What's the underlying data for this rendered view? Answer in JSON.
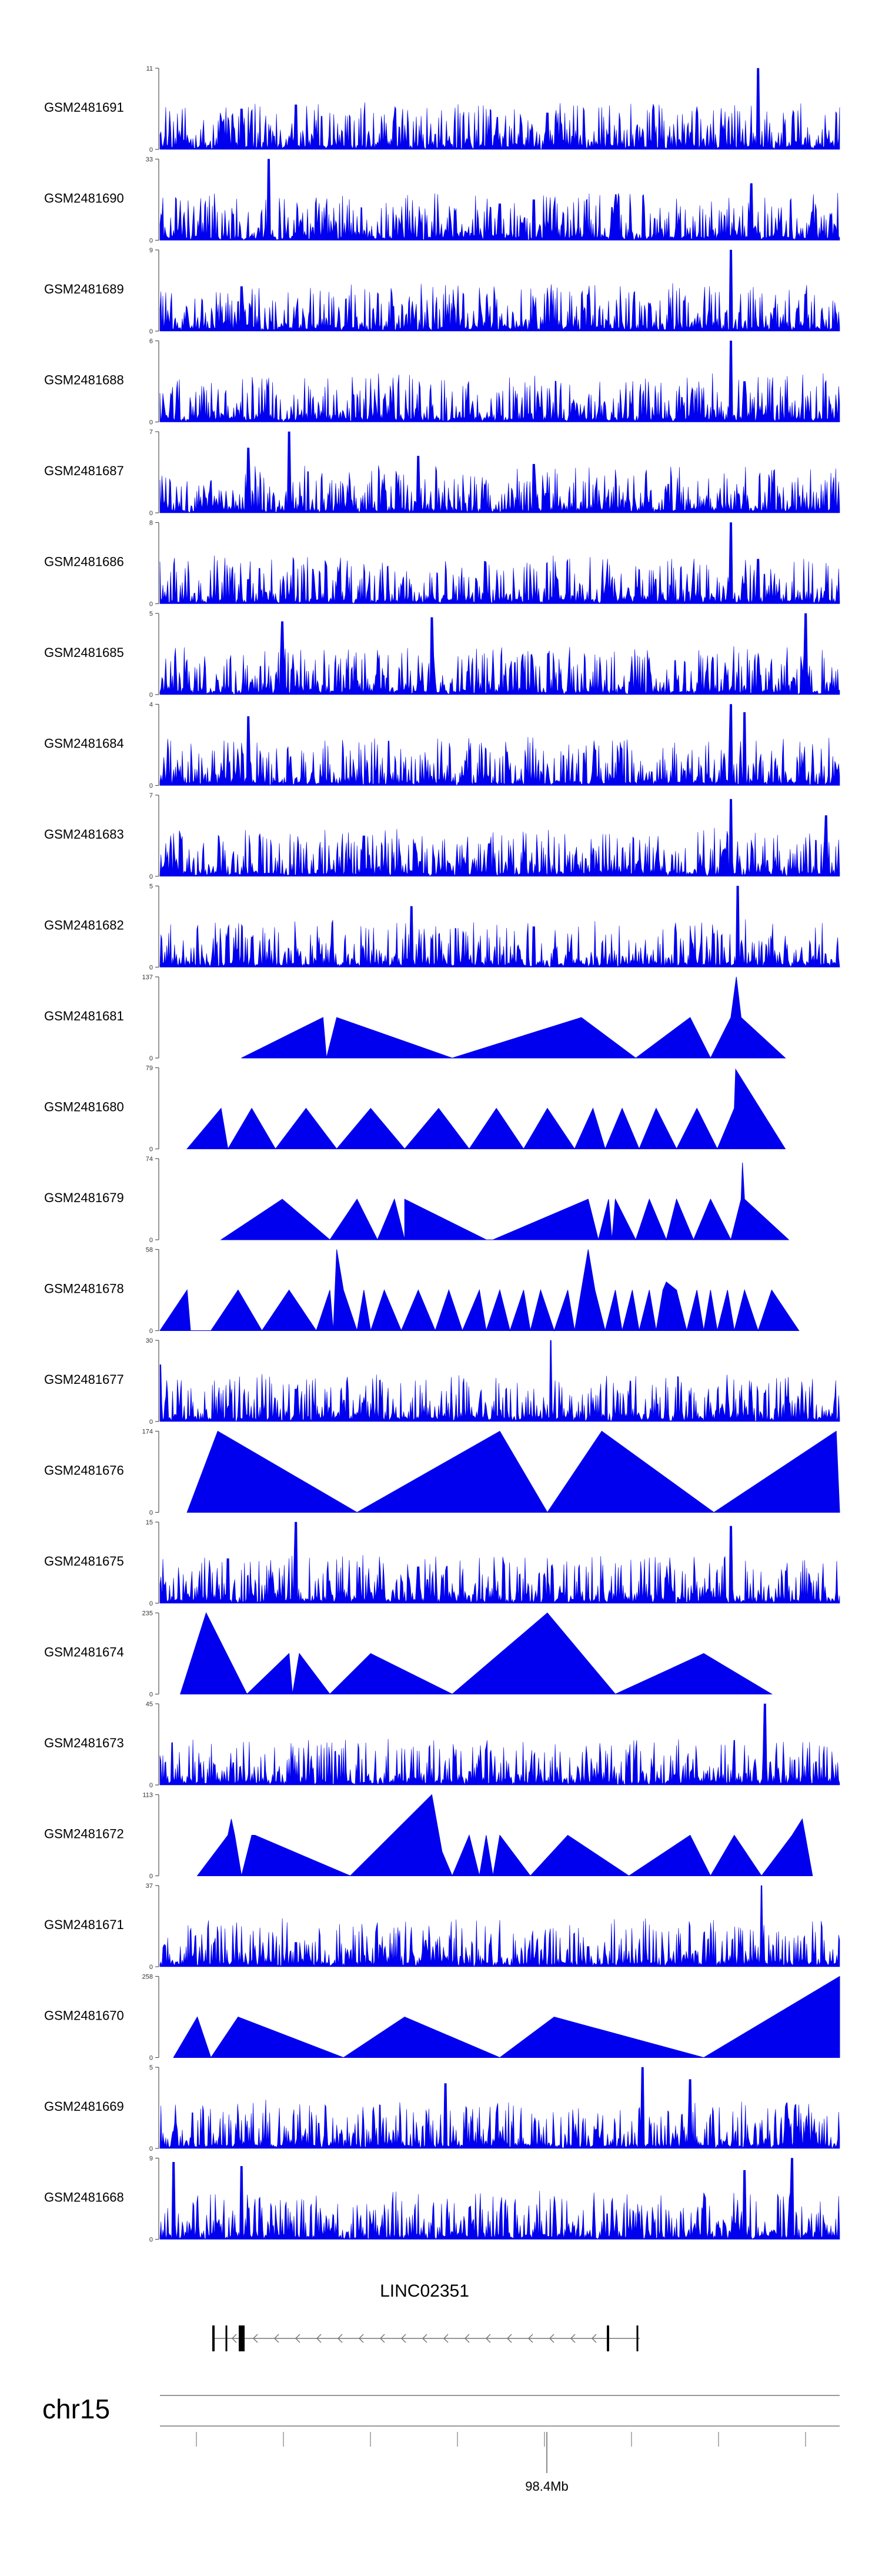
{
  "chart_data": {
    "type": "area",
    "title": "",
    "region_chromosome": "chr15",
    "gene_label": "LINC02351",
    "genome_axis": {
      "tick_label": "98.4Mb"
    },
    "track_color": "#0000ee",
    "tracks": [
      {
        "name": "GSM2481691",
        "ymax": 11,
        "kind": "dense",
        "peaks": [
          [
            0.88,
            1.0
          ],
          [
            0.12,
            0.5
          ],
          [
            0.2,
            0.55
          ],
          [
            0.57,
            0.45
          ],
          [
            0.79,
            0.45
          ]
        ]
      },
      {
        "name": "GSM2481690",
        "ymax": 33,
        "kind": "dense",
        "peaks": [
          [
            0.16,
            1.0
          ],
          [
            0.87,
            0.7
          ],
          [
            0.55,
            0.5
          ],
          [
            0.5,
            0.45
          ]
        ]
      },
      {
        "name": "GSM2481689",
        "ymax": 9,
        "kind": "dense",
        "peaks": [
          [
            0.84,
            1.0
          ],
          [
            0.12,
            0.55
          ],
          [
            0.63,
            0.45
          ]
        ]
      },
      {
        "name": "GSM2481688",
        "ymax": 6,
        "kind": "dense",
        "peaks": [
          [
            0.84,
            1.0
          ],
          [
            0.86,
            0.5
          ]
        ]
      },
      {
        "name": "GSM2481687",
        "ymax": 7,
        "kind": "dense",
        "peaks": [
          [
            0.19,
            1.0
          ],
          [
            0.13,
            0.8
          ],
          [
            0.38,
            0.7
          ],
          [
            0.55,
            0.6
          ]
        ]
      },
      {
        "name": "GSM2481686",
        "ymax": 8,
        "kind": "dense",
        "peaks": [
          [
            0.84,
            1.0
          ],
          [
            0.88,
            0.55
          ],
          [
            0.13,
            0.3
          ]
        ]
      },
      {
        "name": "GSM2481685",
        "ymax": 5,
        "kind": "dense",
        "peaks": [
          [
            0.95,
            1.0
          ],
          [
            0.4,
            0.95
          ],
          [
            0.18,
            0.9
          ]
        ]
      },
      {
        "name": "GSM2481684",
        "ymax": 4,
        "kind": "dense",
        "peaks": [
          [
            0.84,
            1.0
          ],
          [
            0.86,
            0.9
          ],
          [
            0.13,
            0.85
          ]
        ]
      },
      {
        "name": "GSM2481683",
        "ymax": 7,
        "kind": "dense",
        "peaks": [
          [
            0.84,
            0.95
          ],
          [
            0.98,
            0.75
          ],
          [
            0.3,
            0.5
          ]
        ]
      },
      {
        "name": "GSM2481682",
        "ymax": 5,
        "kind": "dense",
        "peaks": [
          [
            0.85,
            1.0
          ],
          [
            0.37,
            0.75
          ],
          [
            0.55,
            0.5
          ]
        ]
      },
      {
        "name": "GSM2481681",
        "ymax": 137,
        "kind": "sparse",
        "points": [
          [
            0.12,
            0
          ],
          [
            0.24,
            0.5
          ],
          [
            0.245,
            0
          ],
          [
            0.26,
            0.5
          ],
          [
            0.43,
            0
          ],
          [
            0.62,
            0.5
          ],
          [
            0.7,
            0
          ],
          [
            0.78,
            0.5
          ],
          [
            0.81,
            0
          ],
          [
            0.84,
            0.5
          ],
          [
            0.848,
            1.0
          ],
          [
            0.855,
            0.5
          ],
          [
            0.92,
            0
          ]
        ]
      },
      {
        "name": "GSM2481680",
        "ymax": 79,
        "kind": "sparse",
        "points": [
          [
            0.04,
            0
          ],
          [
            0.09,
            0.5
          ],
          [
            0.1,
            0
          ],
          [
            0.135,
            0.5
          ],
          [
            0.17,
            0
          ],
          [
            0.215,
            0.5
          ],
          [
            0.26,
            0
          ],
          [
            0.31,
            0.5
          ],
          [
            0.36,
            0
          ],
          [
            0.41,
            0.5
          ],
          [
            0.455,
            0
          ],
          [
            0.495,
            0.5
          ],
          [
            0.535,
            0
          ],
          [
            0.57,
            0.5
          ],
          [
            0.61,
            0
          ],
          [
            0.637,
            0.5
          ],
          [
            0.655,
            0
          ],
          [
            0.68,
            0.5
          ],
          [
            0.705,
            0
          ],
          [
            0.73,
            0.5
          ],
          [
            0.76,
            0
          ],
          [
            0.79,
            0.5
          ],
          [
            0.82,
            0
          ],
          [
            0.845,
            0.5
          ],
          [
            0.847,
            0.98
          ],
          [
            0.92,
            0
          ]
        ]
      },
      {
        "name": "GSM2481679",
        "ymax": 74,
        "kind": "sparse",
        "points": [
          [
            0.09,
            0
          ],
          [
            0.18,
            0.5
          ],
          [
            0.25,
            0
          ],
          [
            0.29,
            0.5
          ],
          [
            0.32,
            0
          ],
          [
            0.345,
            0.5
          ],
          [
            0.36,
            0
          ],
          [
            0.36,
            0.5
          ],
          [
            0.48,
            0
          ],
          [
            0.49,
            0
          ],
          [
            0.63,
            0.5
          ],
          [
            0.645,
            0
          ],
          [
            0.66,
            0.5
          ],
          [
            0.665,
            0
          ],
          [
            0.67,
            0.5
          ],
          [
            0.7,
            0
          ],
          [
            0.72,
            0.5
          ],
          [
            0.745,
            0
          ],
          [
            0.76,
            0.5
          ],
          [
            0.785,
            0
          ],
          [
            0.81,
            0.5
          ],
          [
            0.84,
            0
          ],
          [
            0.855,
            0.5
          ],
          [
            0.857,
            0.95
          ],
          [
            0.86,
            0.5
          ],
          [
            0.925,
            0
          ]
        ]
      },
      {
        "name": "GSM2481678",
        "ymax": 58,
        "kind": "sparse",
        "points": [
          [
            0.0,
            0
          ],
          [
            0.04,
            0.5
          ],
          [
            0.045,
            0
          ],
          [
            0.075,
            0
          ],
          [
            0.115,
            0.5
          ],
          [
            0.15,
            0
          ],
          [
            0.19,
            0.5
          ],
          [
            0.23,
            0
          ],
          [
            0.25,
            0.5
          ],
          [
            0.255,
            0
          ],
          [
            0.26,
            1.0
          ],
          [
            0.27,
            0.5
          ],
          [
            0.29,
            0
          ],
          [
            0.3,
            0.5
          ],
          [
            0.31,
            0
          ],
          [
            0.33,
            0.5
          ],
          [
            0.355,
            0
          ],
          [
            0.38,
            0.5
          ],
          [
            0.405,
            0
          ],
          [
            0.425,
            0.5
          ],
          [
            0.445,
            0
          ],
          [
            0.47,
            0.5
          ],
          [
            0.48,
            0
          ],
          [
            0.5,
            0.5
          ],
          [
            0.515,
            0
          ],
          [
            0.535,
            0.5
          ],
          [
            0.545,
            0
          ],
          [
            0.56,
            0.5
          ],
          [
            0.58,
            0
          ],
          [
            0.6,
            0.5
          ],
          [
            0.61,
            0
          ],
          [
            0.63,
            1.0
          ],
          [
            0.64,
            0.5
          ],
          [
            0.655,
            0
          ],
          [
            0.67,
            0.5
          ],
          [
            0.68,
            0
          ],
          [
            0.695,
            0.5
          ],
          [
            0.705,
            0
          ],
          [
            0.72,
            0.5
          ],
          [
            0.73,
            0
          ],
          [
            0.74,
            0.5
          ],
          [
            0.745,
            0.6
          ],
          [
            0.76,
            0.5
          ],
          [
            0.775,
            0
          ],
          [
            0.79,
            0.5
          ],
          [
            0.8,
            0
          ],
          [
            0.81,
            0.5
          ],
          [
            0.82,
            0
          ],
          [
            0.835,
            0.5
          ],
          [
            0.845,
            0
          ],
          [
            0.86,
            0.5
          ],
          [
            0.88,
            0
          ],
          [
            0.9,
            0.5
          ],
          [
            0.94,
            0
          ]
        ]
      },
      {
        "name": "GSM2481677",
        "ymax": 30,
        "kind": "dense",
        "peaks": [
          [
            0.575,
            1.0
          ],
          [
            0.0,
            0.7
          ],
          [
            0.2,
            0.4
          ],
          [
            0.89,
            0.35
          ]
        ]
      },
      {
        "name": "GSM2481676",
        "ymax": 174,
        "kind": "sparse",
        "points": [
          [
            0.04,
            0
          ],
          [
            0.085,
            1.0
          ],
          [
            0.29,
            0
          ],
          [
            0.5,
            1.0
          ],
          [
            0.57,
            0
          ],
          [
            0.65,
            1.0
          ],
          [
            0.815,
            0
          ],
          [
            0.995,
            1.0
          ],
          [
            1.0,
            0
          ]
        ]
      },
      {
        "name": "GSM2481675",
        "ymax": 15,
        "kind": "dense",
        "peaks": [
          [
            0.2,
            1.0
          ],
          [
            0.84,
            0.95
          ],
          [
            0.1,
            0.55
          ],
          [
            0.38,
            0.45
          ]
        ]
      },
      {
        "name": "GSM2481674",
        "ymax": 235,
        "kind": "sparse",
        "points": [
          [
            0.03,
            0
          ],
          [
            0.068,
            1.0
          ],
          [
            0.128,
            0
          ],
          [
            0.19,
            0.5
          ],
          [
            0.195,
            0
          ],
          [
            0.205,
            0.5
          ],
          [
            0.25,
            0
          ],
          [
            0.31,
            0.5
          ],
          [
            0.43,
            0
          ],
          [
            0.57,
            1.0
          ],
          [
            0.67,
            0
          ],
          [
            0.8,
            0.5
          ],
          [
            0.9,
            0
          ]
        ]
      },
      {
        "name": "GSM2481673",
        "ymax": 45,
        "kind": "dense",
        "peaks": [
          [
            0.89,
            1.0
          ],
          [
            0.845,
            0.55
          ],
          [
            0.08,
            0.25
          ],
          [
            0.0,
            0.3
          ]
        ]
      },
      {
        "name": "GSM2481672",
        "ymax": 113,
        "kind": "sparse",
        "points": [
          [
            0.055,
            0
          ],
          [
            0.1,
            0.5
          ],
          [
            0.105,
            0.7
          ],
          [
            0.11,
            0.5
          ],
          [
            0.12,
            0
          ],
          [
            0.135,
            0.5
          ],
          [
            0.14,
            0.5
          ],
          [
            0.28,
            0
          ],
          [
            0.4,
            1.0
          ],
          [
            0.415,
            0.3
          ],
          [
            0.43,
            0
          ],
          [
            0.455,
            0.5
          ],
          [
            0.47,
            0
          ],
          [
            0.48,
            0.5
          ],
          [
            0.49,
            0
          ],
          [
            0.5,
            0.5
          ],
          [
            0.545,
            0
          ],
          [
            0.6,
            0.5
          ],
          [
            0.69,
            0
          ],
          [
            0.78,
            0.5
          ],
          [
            0.81,
            0
          ],
          [
            0.845,
            0.5
          ],
          [
            0.885,
            0
          ],
          [
            0.93,
            0.5
          ],
          [
            0.945,
            0.7
          ],
          [
            0.96,
            0
          ]
        ]
      },
      {
        "name": "GSM2481671",
        "ymax": 37,
        "kind": "dense",
        "peaks": [
          [
            0.885,
            1.0
          ],
          [
            0.2,
            0.3
          ],
          [
            0.63,
            0.25
          ]
        ]
      },
      {
        "name": "GSM2481670",
        "ymax": 258,
        "kind": "sparse",
        "points": [
          [
            0.02,
            0
          ],
          [
            0.055,
            0.5
          ],
          [
            0.075,
            0
          ],
          [
            0.115,
            0.5
          ],
          [
            0.27,
            0
          ],
          [
            0.36,
            0.5
          ],
          [
            0.5,
            0
          ],
          [
            0.58,
            0.5
          ],
          [
            0.8,
            0
          ],
          [
            1.0,
            1.0
          ],
          [
            1.0,
            0
          ]
        ]
      },
      {
        "name": "GSM2481669",
        "ymax": 5,
        "kind": "dense",
        "peaks": [
          [
            0.71,
            1.0
          ],
          [
            0.78,
            0.85
          ],
          [
            0.42,
            0.8
          ]
        ]
      },
      {
        "name": "GSM2481668",
        "ymax": 9,
        "kind": "dense",
        "peaks": [
          [
            0.93,
            1.0
          ],
          [
            0.02,
            0.95
          ],
          [
            0.12,
            0.9
          ],
          [
            0.86,
            0.85
          ]
        ]
      }
    ]
  }
}
